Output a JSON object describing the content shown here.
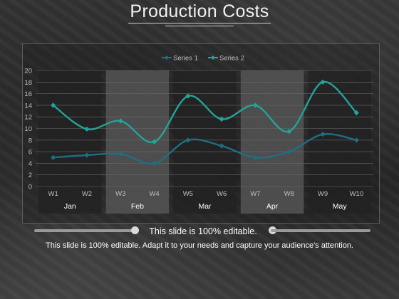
{
  "title": "Production Costs",
  "subtitle": "This slide is 100% editable.",
  "body_text": "This slide is 100% editable. Adapt it to your needs and capture your audience's attention.",
  "colors": {
    "series1": "#1e6e84",
    "series2": "#24a39a",
    "shade": "#555555",
    "dark": "#222222"
  },
  "chart_data": {
    "type": "line",
    "title": "",
    "xlabel": "",
    "ylabel": "",
    "ylim": [
      0,
      20
    ],
    "yticks": [
      "0",
      "2",
      "4",
      "6",
      "8",
      "10",
      "12",
      "14",
      "16",
      "18",
      "20"
    ],
    "categories": [
      "W1",
      "W2",
      "W3",
      "W4",
      "W5",
      "W6",
      "W7",
      "W8",
      "W9",
      "W10"
    ],
    "groups": [
      {
        "label": "Jan",
        "shaded": false
      },
      {
        "label": "Feb",
        "shaded": true
      },
      {
        "label": "Mar",
        "shaded": false
      },
      {
        "label": "Apr",
        "shaded": true
      },
      {
        "label": "May",
        "shaded": false
      }
    ],
    "series": [
      {
        "name": "Series 1",
        "values": [
          5,
          5.4,
          5.6,
          4,
          8,
          7,
          5,
          6,
          9,
          8
        ]
      },
      {
        "name": "Series 2",
        "values": [
          14,
          9.9,
          11.3,
          7.7,
          15.6,
          11.6,
          14,
          9.5,
          18,
          12.7
        ]
      }
    ],
    "legend": "top-center",
    "grid": true,
    "smooth": true
  }
}
